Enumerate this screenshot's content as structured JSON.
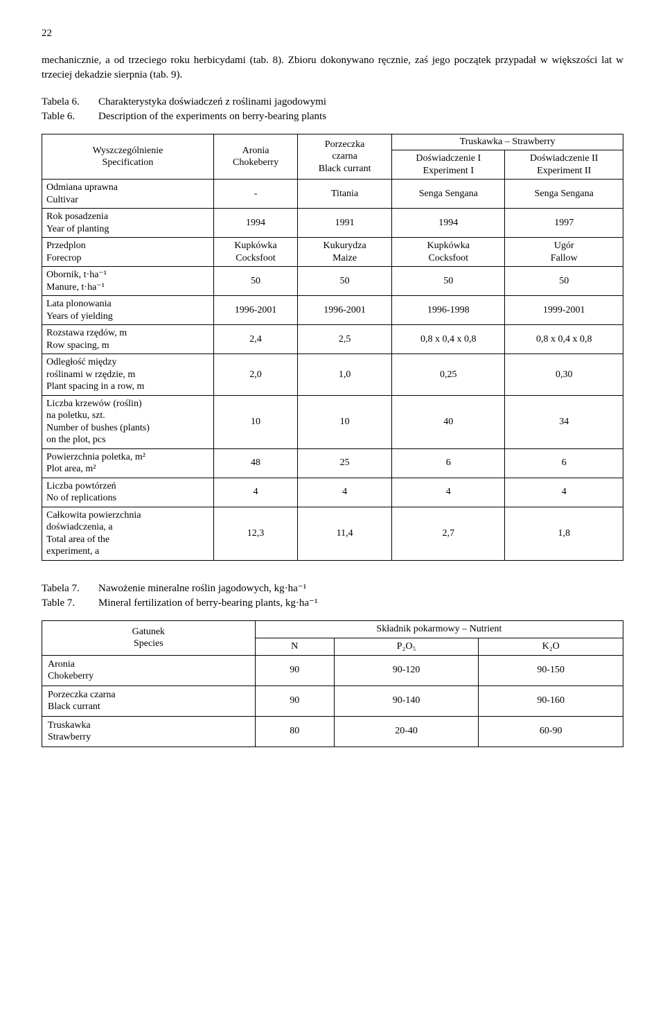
{
  "page_number": "22",
  "paragraph": "mechanicznie, a od trzeciego roku herbicydami (tab. 8). Zbioru dokonywano ręcznie, zaś jego początek przypadał w większości lat w trzeciej dekadzie sierpnia (tab. 9).",
  "table6": {
    "caption_pl_label": "Tabela 6.",
    "caption_pl_text": "Charakterystyka doświadczeń z roślinami jagodowymi",
    "caption_en_label": "Table 6.",
    "caption_en_text": "Description of the experiments on berry-bearing plants",
    "header": {
      "spec": "Wyszczególnienie\nSpecification",
      "aronia": "Aronia\nChokeberry",
      "porzeczka": "Porzeczka\nczarna\nBlack currant",
      "truskawka": "Truskawka – Strawberry",
      "exp1": "Doświadczenie I\nExperiment I",
      "exp2": "Doświadczenie II\nExperiment II"
    },
    "rows": [
      {
        "label": "Odmiana uprawna\nCultivar",
        "c1": "-",
        "c2": "Titania",
        "c3": "Senga Sengana",
        "c4": "Senga Sengana"
      },
      {
        "label": "Rok posadzenia\nYear of planting",
        "c1": "1994",
        "c2": "1991",
        "c3": "1994",
        "c4": "1997"
      },
      {
        "label": "Przedplon\nForecrop",
        "c1": "Kupkówka\nCocksfoot",
        "c2": "Kukurydza\nMaize",
        "c3": "Kupkówka\nCocksfoot",
        "c4": "Ugór\nFallow"
      },
      {
        "label": "Obornik, t·ha⁻¹\nManure, t·ha⁻¹",
        "c1": "50",
        "c2": "50",
        "c3": "50",
        "c4": "50"
      },
      {
        "label": "Lata plonowania\nYears of yielding",
        "c1": "1996-2001",
        "c2": "1996-2001",
        "c3": "1996-1998",
        "c4": "1999-2001"
      },
      {
        "label": "Rozstawa rzędów, m\nRow spacing, m",
        "c1": "2,4",
        "c2": "2,5",
        "c3": "0,8 x 0,4 x 0,8",
        "c4": "0,8 x 0,4 x 0,8"
      },
      {
        "label": "Odległość między\nroślinami w rzędzie, m\nPlant spacing in a row, m",
        "c1": "2,0",
        "c2": "1,0",
        "c3": "0,25",
        "c4": "0,30"
      },
      {
        "label": "Liczba krzewów (roślin)\nna poletku, szt.\nNumber of bushes (plants)\non the plot, pcs",
        "c1": "10",
        "c2": "10",
        "c3": "40",
        "c4": "34"
      },
      {
        "label": "Powierzchnia poletka, m²\nPlot area, m²",
        "c1": "48",
        "c2": "25",
        "c3": "6",
        "c4": "6"
      },
      {
        "label": "Liczba powtórzeń\nNo of replications",
        "c1": "4",
        "c2": "4",
        "c3": "4",
        "c4": "4"
      },
      {
        "label": "Całkowita powierzchnia\ndoświadczenia, a\nTotal area of the\nexperiment, a",
        "c1": "12,3",
        "c2": "11,4",
        "c3": "2,7",
        "c4": "1,8"
      }
    ]
  },
  "table7": {
    "caption_pl_label": "Tabela 7.",
    "caption_pl_text": "Nawożenie mineralne roślin jagodowych, kg·ha⁻¹",
    "caption_en_label": "Table 7.",
    "caption_en_text": "Mineral fertilization of berry-bearing plants, kg·ha⁻¹",
    "header": {
      "species": "Gatunek\nSpecies",
      "nutrient": "Składnik pokarmowy – Nutrient",
      "n": "N",
      "p": "P₂O₅",
      "k": "K₂O"
    },
    "rows": [
      {
        "label": "Aronia\nChokeberry",
        "n": "90",
        "p": "90-120",
        "k": "90-150"
      },
      {
        "label": "Porzeczka czarna\nBlack currant",
        "n": "90",
        "p": "90-140",
        "k": "90-160"
      },
      {
        "label": "Truskawka\nStrawberry",
        "n": "80",
        "p": "20-40",
        "k": "60-90"
      }
    ]
  }
}
